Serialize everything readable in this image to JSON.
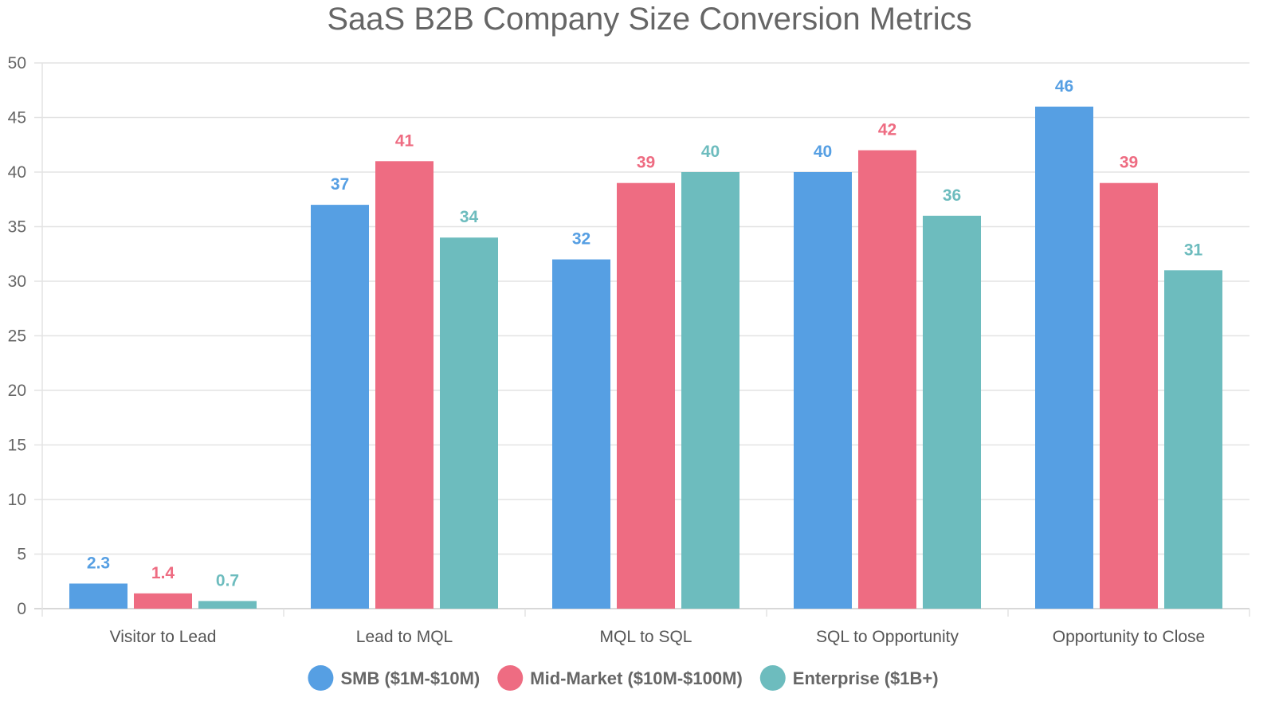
{
  "chart_data": {
    "type": "bar",
    "title": "SaaS B2B Company Size Conversion Metrics",
    "xlabel": "",
    "ylabel": "",
    "ylim": [
      0,
      50
    ],
    "yticks": [
      0,
      5,
      10,
      15,
      20,
      25,
      30,
      35,
      40,
      45,
      50
    ],
    "grid": true,
    "legend_position": "bottom",
    "categories": [
      "Visitor to Lead",
      "Lead to MQL",
      "MQL to SQL",
      "SQL to Opportunity",
      "Opportunity to Close"
    ],
    "series": [
      {
        "name": "SMB ($1M-$10M)",
        "color": "#569fe3",
        "values": [
          2.3,
          37,
          32,
          40,
          46
        ]
      },
      {
        "name": "Mid-Market ($10M-$100M)",
        "color": "#ee6c82",
        "values": [
          1.4,
          41,
          39,
          42,
          39
        ]
      },
      {
        "name": "Enterprise ($1B+)",
        "color": "#6dbcbe",
        "values": [
          0.7,
          34,
          40,
          36,
          31
        ]
      }
    ]
  }
}
